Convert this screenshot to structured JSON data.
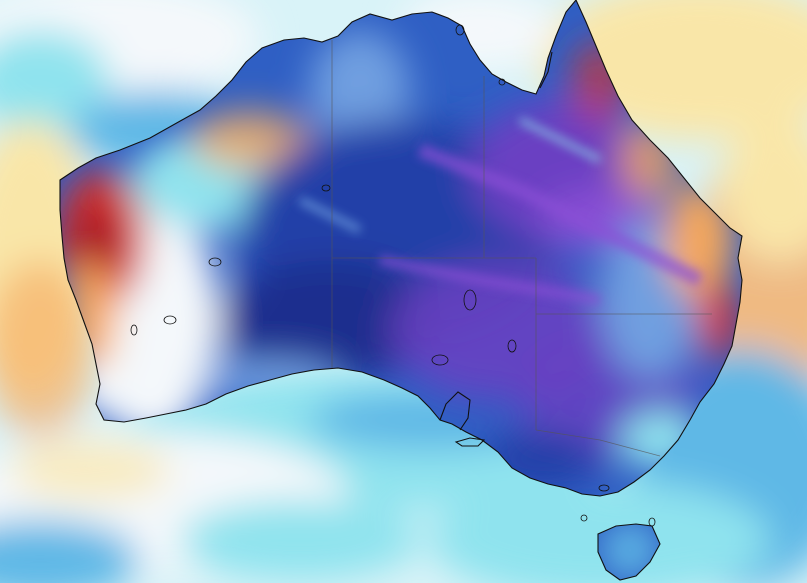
{
  "map": {
    "colors": {
      "ocean_white": "#f4f8fb",
      "ocean_cyan": "#8fe3ee",
      "ocean_light_blue": "#5fb8e6",
      "ocean_blue": "#3d8fd6",
      "warm_yellow": "#f9e6a8",
      "warm_orange": "#f5a75c",
      "hot_red": "#d8342a",
      "hot_dark_red": "#a3122b",
      "land_blue": "#2f5fc4",
      "land_deep_blue": "#2440a8",
      "land_navy": "#1f2f8e",
      "land_purple": "#6b3fc2",
      "land_violet": "#8a4fd6",
      "land_light_blue": "#6f9fe0",
      "coastline": "#111111",
      "boundary": "#555555"
    },
    "features": [
      "coastline",
      "state-boundaries",
      "tasmania",
      "islands"
    ]
  }
}
